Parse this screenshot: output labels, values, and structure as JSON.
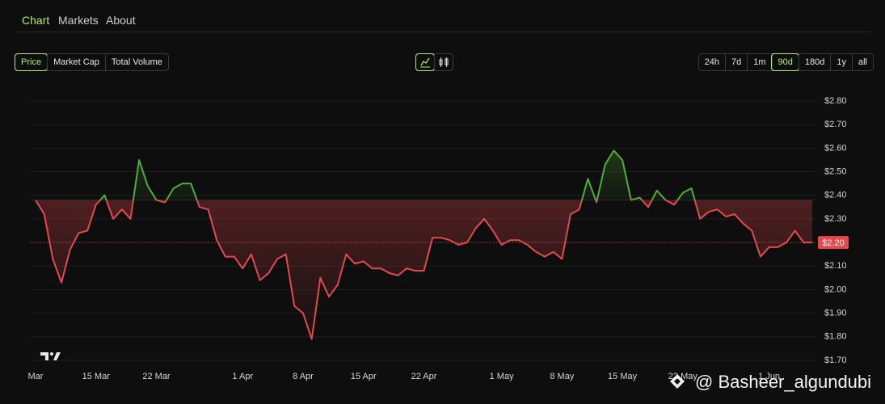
{
  "nav": {
    "tabs": [
      "Chart",
      "Markets",
      "About"
    ],
    "active": 0
  },
  "metric_buttons": {
    "items": [
      "Price",
      "Market Cap",
      "Total Volume"
    ],
    "active": 0
  },
  "range_buttons": {
    "items": [
      "24h",
      "7d",
      "1m",
      "90d",
      "180d",
      "1y",
      "all"
    ],
    "active": 3
  },
  "chart_data": {
    "type": "baseline",
    "categories": [
      "Mar",
      null,
      null,
      null,
      null,
      null,
      null,
      "15 Mar",
      null,
      null,
      null,
      null,
      null,
      null,
      "22 Mar",
      null,
      null,
      null,
      null,
      null,
      null,
      null,
      null,
      null,
      "1 Apr",
      null,
      null,
      null,
      null,
      null,
      null,
      "8 Apr",
      null,
      null,
      null,
      null,
      null,
      null,
      "15 Apr",
      null,
      null,
      null,
      null,
      null,
      null,
      "22 Apr",
      null,
      null,
      null,
      null,
      null,
      null,
      null,
      null,
      "1 May",
      null,
      null,
      null,
      null,
      null,
      null,
      "8 May",
      null,
      null,
      null,
      null,
      null,
      null,
      "15 May",
      null,
      null,
      null,
      null,
      null,
      null,
      "22 May",
      null,
      null,
      null,
      null,
      null,
      null,
      null,
      null,
      null,
      "1 Jun",
      null,
      null,
      null,
      null,
      null
    ],
    "values": [
      2.38,
      2.32,
      2.13,
      2.03,
      2.17,
      2.24,
      2.25,
      2.36,
      2.4,
      2.3,
      2.34,
      2.3,
      2.55,
      2.44,
      2.38,
      2.37,
      2.43,
      2.45,
      2.45,
      2.35,
      2.34,
      2.21,
      2.14,
      2.14,
      2.09,
      2.15,
      2.04,
      2.07,
      2.13,
      2.15,
      1.93,
      1.9,
      1.79,
      2.05,
      1.97,
      2.02,
      2.15,
      2.11,
      2.12,
      2.09,
      2.09,
      2.07,
      2.06,
      2.09,
      2.08,
      2.08,
      2.22,
      2.22,
      2.21,
      2.19,
      2.2,
      2.26,
      2.3,
      2.25,
      2.19,
      2.21,
      2.21,
      2.19,
      2.16,
      2.14,
      2.16,
      2.13,
      2.32,
      2.34,
      2.47,
      2.37,
      2.53,
      2.59,
      2.55,
      2.38,
      2.39,
      2.35,
      2.42,
      2.38,
      2.36,
      2.41,
      2.43,
      2.3,
      2.33,
      2.34,
      2.31,
      2.32,
      2.28,
      2.25,
      2.14,
      2.18,
      2.18,
      2.2,
      2.25,
      2.2,
      2.2
    ],
    "last_value_label": "$2.20",
    "color_above": "#4fae3b",
    "color_below": "#e5484d",
    "ylim": [
      1.7,
      2.8
    ],
    "yticks": [
      {
        "value": 1.7,
        "label": "$1.70"
      },
      {
        "value": 1.8,
        "label": "$1.80"
      },
      {
        "value": 1.9,
        "label": "$1.90"
      },
      {
        "value": 2.0,
        "label": "$2.00"
      },
      {
        "value": 2.1,
        "label": "$2.10"
      },
      {
        "value": 2.2,
        "label": "$2.20"
      },
      {
        "value": 2.3,
        "label": "$2.30"
      },
      {
        "value": 2.4,
        "label": "$2.40"
      },
      {
        "value": 2.5,
        "label": "$2.50"
      },
      {
        "value": 2.6,
        "label": "$2.60"
      },
      {
        "value": 2.7,
        "label": "$2.70"
      },
      {
        "value": 2.8,
        "label": "$2.80"
      }
    ],
    "grid": true
  },
  "watermark": "@ Basheer_algundubi"
}
